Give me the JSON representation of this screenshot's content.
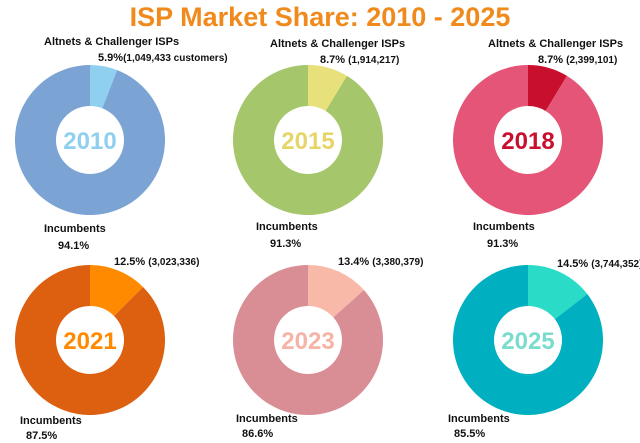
{
  "title": "ISP Market Share: 2010 - 2025",
  "chart_data": {
    "type": "pie",
    "title": "ISP Market Share: 2010 - 2025",
    "charts": [
      {
        "year": "2010",
        "altnets_label": "Altnets & Challenger ISPs",
        "altnets_pct": 5.9,
        "altnets_pct_text": "5.9%",
        "altnets_count": "(1,049,433 customers)",
        "incumbents_label": "Incumbents",
        "incumbents_pct": 94.1,
        "incumbents_pct_text": "94.1%",
        "colors": {
          "incumbents": "#7ba3d4",
          "altnets": "#8fd0f0",
          "year": "#8fd0f0"
        }
      },
      {
        "year": "2015",
        "altnets_label": "Altnets & Challenger ISPs",
        "altnets_pct": 8.7,
        "altnets_pct_text": "8.7%",
        "altnets_count": "(1,914,217)",
        "incumbents_label": "Incumbents",
        "incumbents_pct": 91.3,
        "incumbents_pct_text": "91.3%",
        "colors": {
          "incumbents": "#a5c66a",
          "altnets": "#e8e07a",
          "year": "#e6d66a"
        }
      },
      {
        "year": "2018",
        "altnets_label": "Altnets & Challenger ISPs",
        "altnets_pct": 8.7,
        "altnets_pct_text": "8.7%",
        "altnets_count": "(2,399,101)",
        "incumbents_label": "Incumbents",
        "incumbents_pct": 91.3,
        "incumbents_pct_text": "91.3%",
        "colors": {
          "incumbents": "#e55577",
          "altnets": "#c8102e",
          "year": "#c8102e"
        }
      },
      {
        "year": "2021",
        "altnets_pct": 12.5,
        "altnets_pct_text": "12.5%",
        "altnets_count": "(3,023,336)",
        "incumbents_label": "Incumbents",
        "incumbents_pct": 87.5,
        "incumbents_pct_text": "87.5%",
        "colors": {
          "incumbents": "#dd5f10",
          "altnets": "#ff8a00",
          "year": "#ff8a00"
        }
      },
      {
        "year": "2023",
        "altnets_pct": 13.4,
        "altnets_pct_text": "13.4%",
        "altnets_count": "(3,380,379)",
        "incumbents_label": "Incumbents",
        "incumbents_pct": 86.6,
        "incumbents_pct_text": "86.6%",
        "colors": {
          "incumbents": "#d98d94",
          "altnets": "#f8b9a8",
          "year": "#f6b3a6"
        }
      },
      {
        "year": "2025",
        "altnets_pct": 14.5,
        "altnets_pct_text": "14.5%",
        "altnets_count": "(3,744,352)",
        "incumbents_label": "Incumbents",
        "incumbents_pct": 85.5,
        "incumbents_pct_text": "85.5%",
        "colors": {
          "incumbents": "#00b0c0",
          "altnets": "#2adcc8",
          "year": "#7adccc"
        }
      }
    ]
  }
}
